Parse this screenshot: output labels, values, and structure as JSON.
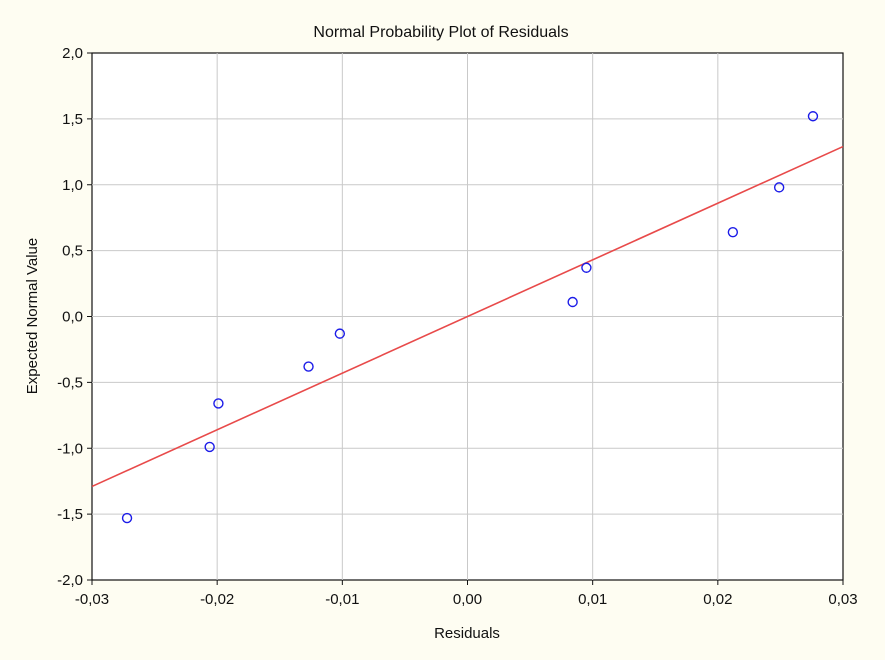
{
  "chart_data": {
    "type": "scatter",
    "title": "Normal Probability Plot of Residuals",
    "xlabel": "Residuals",
    "ylabel": "Expected Normal Value",
    "xlim": [
      -0.03,
      0.03
    ],
    "ylim": [
      -2.0,
      2.0
    ],
    "x_ticks": [
      -0.03,
      -0.02,
      -0.01,
      0.0,
      0.01,
      0.02,
      0.03
    ],
    "x_tick_labels": [
      "-0,03",
      "-0,02",
      "-0,01",
      "0,00",
      "0,01",
      "0,02",
      "0,03"
    ],
    "y_ticks": [
      2.0,
      1.5,
      1.0,
      0.5,
      0.0,
      -0.5,
      -1.0,
      -1.5,
      -2.0
    ],
    "y_tick_labels": [
      "2,0",
      "1,5",
      "1,0",
      "0,5",
      "0,0",
      "-0,5",
      "-1,0",
      "-1,5",
      "-2,0"
    ],
    "grid": true,
    "points": [
      {
        "x": -0.0272,
        "y": -1.53
      },
      {
        "x": -0.0206,
        "y": -0.99
      },
      {
        "x": -0.0199,
        "y": -0.66
      },
      {
        "x": -0.0127,
        "y": -0.38
      },
      {
        "x": -0.0102,
        "y": -0.13
      },
      {
        "x": 0.0084,
        "y": 0.11
      },
      {
        "x": 0.0095,
        "y": 0.37
      },
      {
        "x": 0.0212,
        "y": 0.64
      },
      {
        "x": 0.0249,
        "y": 0.98
      },
      {
        "x": 0.0276,
        "y": 1.52
      }
    ],
    "fit_line": {
      "x": [
        -0.03,
        0.03
      ],
      "y": [
        -1.29,
        1.29
      ]
    },
    "colors": {
      "points": "#1c1ce8",
      "fit_line": "#e84a4a",
      "grid": "#c9c9c9"
    }
  }
}
